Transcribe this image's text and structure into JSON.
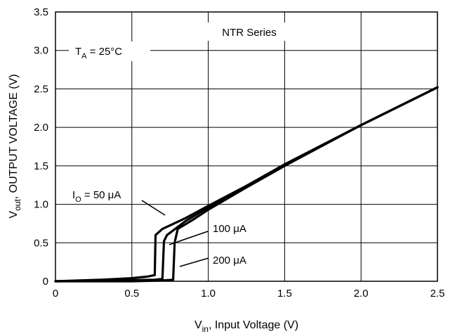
{
  "chart_data": {
    "type": "line",
    "title": "",
    "xlabel": {
      "main": "V",
      "sub": "in",
      "rest": ", Input Voltage (V)"
    },
    "ylabel": {
      "main": "V",
      "sub": "out",
      "rest": ", OUTPUT VOLTAGE (V)"
    },
    "xlim": [
      0,
      2.5
    ],
    "ylim": [
      0,
      3.5
    ],
    "x_ticks": [
      {
        "value": 0,
        "label": "0"
      },
      {
        "value": 0.5,
        "label": "0.5"
      },
      {
        "value": 1.0,
        "label": "1.0"
      },
      {
        "value": 1.5,
        "label": "1.5"
      },
      {
        "value": 2.0,
        "label": "2.0"
      },
      {
        "value": 2.5,
        "label": "2.5"
      }
    ],
    "y_ticks": [
      {
        "value": 0,
        "label": "0"
      },
      {
        "value": 0.5,
        "label": "0.5"
      },
      {
        "value": 1.0,
        "label": "1.0"
      },
      {
        "value": 1.5,
        "label": "1.5"
      },
      {
        "value": 2.0,
        "label": "2.0"
      },
      {
        "value": 2.5,
        "label": "2.5"
      },
      {
        "value": 3.0,
        "label": "3.0"
      },
      {
        "value": 3.5,
        "label": "3.5"
      }
    ],
    "grid": true,
    "annotations": {
      "series_name": "NTR Series",
      "temperature": {
        "main": "T",
        "sub": "A",
        "rest": " = 25°C"
      }
    },
    "series": [
      {
        "name": "",
        "label": {
          "main": "I",
          "sub": "O",
          "rest": " = 50 μA"
        },
        "points": [
          [
            0,
            0
          ],
          [
            0.3,
            0.02
          ],
          [
            0.5,
            0.04
          ],
          [
            0.6,
            0.06
          ],
          [
            0.65,
            0.08
          ],
          [
            0.655,
            0.6
          ],
          [
            0.7,
            0.68
          ],
          [
            0.85,
            0.82
          ],
          [
            1.0,
            0.98
          ],
          [
            1.25,
            1.24
          ],
          [
            1.5,
            1.52
          ],
          [
            2.0,
            2.03
          ],
          [
            2.5,
            2.52
          ]
        ]
      },
      {
        "name": "",
        "label": {
          "main": "",
          "sub": "",
          "rest": "100 μA"
        },
        "points": [
          [
            0,
            0
          ],
          [
            0.4,
            0.01
          ],
          [
            0.65,
            0.02
          ],
          [
            0.7,
            0.03
          ],
          [
            0.71,
            0.52
          ],
          [
            0.73,
            0.6
          ],
          [
            0.85,
            0.78
          ],
          [
            1.0,
            0.96
          ],
          [
            1.25,
            1.23
          ],
          [
            1.5,
            1.51
          ],
          [
            2.0,
            2.03
          ],
          [
            2.5,
            2.52
          ]
        ]
      },
      {
        "name": "",
        "label": {
          "main": "",
          "sub": "",
          "rest": "200 μA"
        },
        "points": [
          [
            0,
            0
          ],
          [
            0.5,
            0.0
          ],
          [
            0.7,
            0.01
          ],
          [
            0.77,
            0.02
          ],
          [
            0.78,
            0.5
          ],
          [
            0.8,
            0.68
          ],
          [
            0.9,
            0.8
          ],
          [
            1.0,
            0.93
          ],
          [
            1.25,
            1.22
          ],
          [
            1.5,
            1.5
          ],
          [
            2.0,
            2.03
          ],
          [
            2.5,
            2.52
          ]
        ]
      }
    ]
  }
}
